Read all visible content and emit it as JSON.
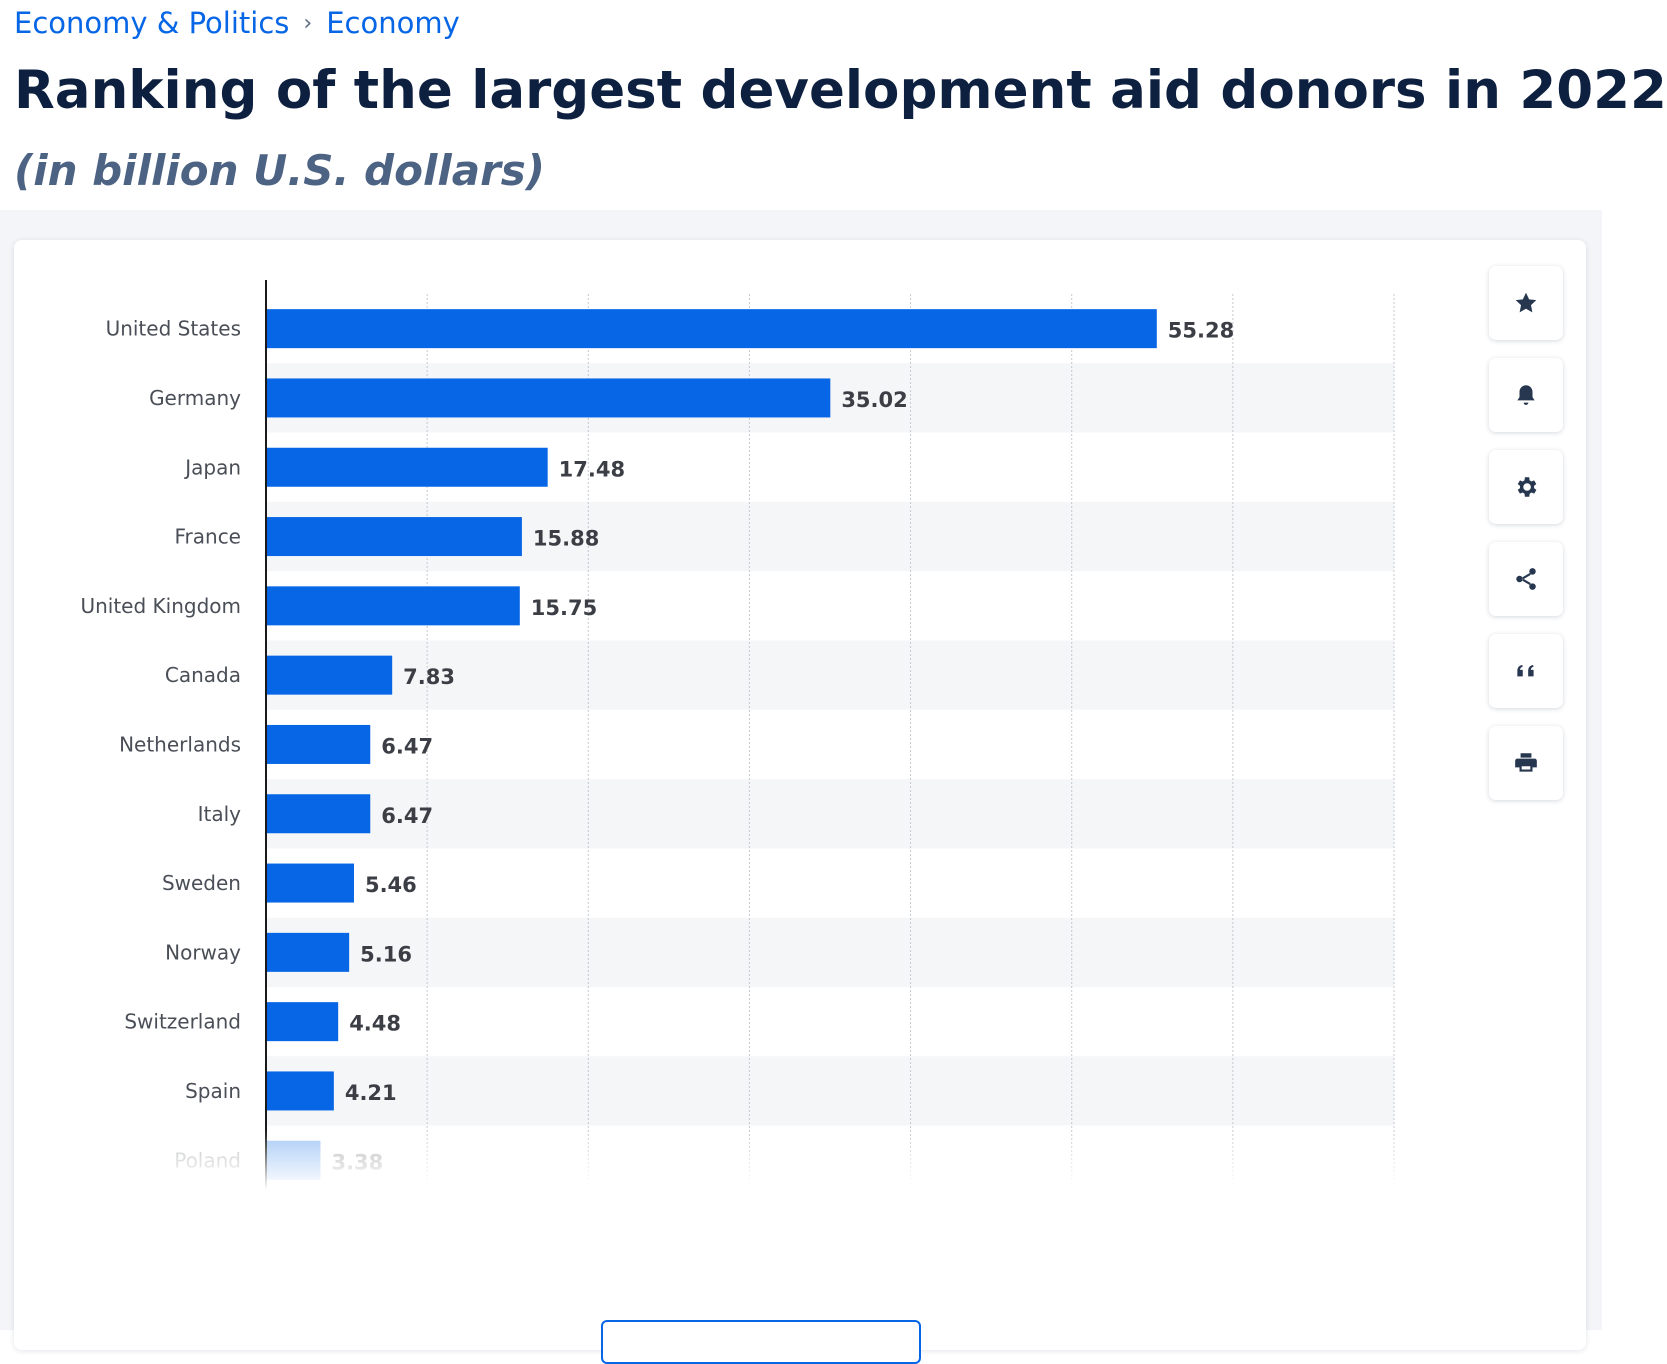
{
  "breadcrumb": {
    "items": [
      "Economy & Politics",
      "Economy"
    ],
    "separator": "›"
  },
  "header": {
    "title": "Ranking of the largest development aid donors in 2022",
    "subtitle": "(in billion U.S. dollars)"
  },
  "toolbar": {
    "buttons": [
      {
        "icon": "star-icon"
      },
      {
        "icon": "bell-icon"
      },
      {
        "icon": "gear-icon"
      },
      {
        "icon": "share-icon"
      },
      {
        "icon": "quote-icon"
      },
      {
        "icon": "print-icon"
      }
    ]
  },
  "colors": {
    "bar": "#0666e5",
    "accent": "#0666e5",
    "title": "#0e2040",
    "stripe": "#f5f6f8"
  },
  "chart_data": {
    "type": "bar",
    "orientation": "horizontal",
    "categories": [
      "United States",
      "Germany",
      "Japan",
      "France",
      "United Kingdom",
      "Canada",
      "Netherlands",
      "Italy",
      "Sweden",
      "Norway",
      "Switzerland",
      "Spain",
      "Poland"
    ],
    "values": [
      55.28,
      35.02,
      17.48,
      15.88,
      15.75,
      7.83,
      6.47,
      6.47,
      5.46,
      5.16,
      4.48,
      4.21,
      3.38
    ],
    "value_labels": [
      "55.28",
      "35.02",
      "17.48",
      "15.88",
      "15.75",
      "7.83",
      "6.47",
      "6.47",
      "5.46",
      "5.16",
      "4.48",
      "4.21",
      "3.38"
    ],
    "xlim": [
      0,
      70
    ],
    "grid": true,
    "grid_style": "dotted vertical",
    "title": "",
    "xlabel": "",
    "ylabel": ""
  }
}
